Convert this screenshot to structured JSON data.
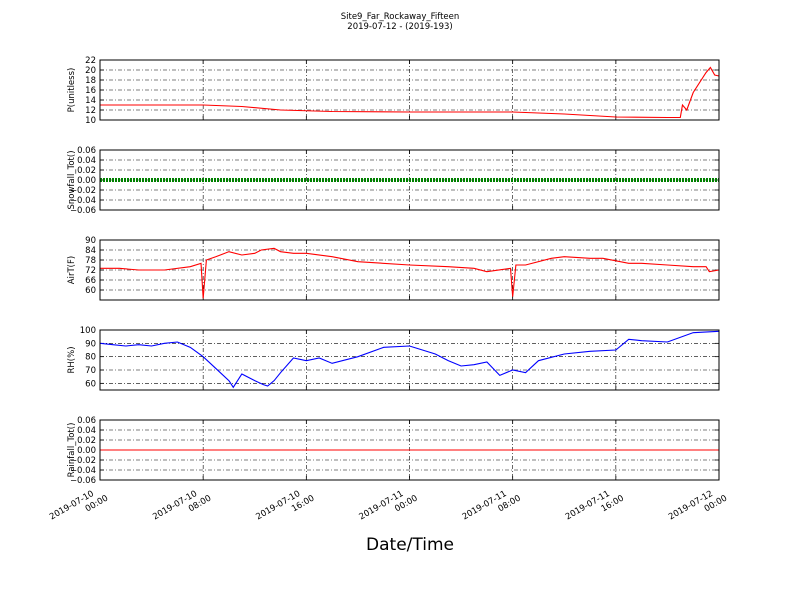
{
  "title": "Site9_Far_Rockaway_Fifteen",
  "subtitle": "2019-07-12 - (2019-193)",
  "xlabel": "Date/Time",
  "x_ticks": [
    {
      "line1": "2019-07-10",
      "line2": "00:00"
    },
    {
      "line1": "2019-07-10",
      "line2": "08:00"
    },
    {
      "line1": "2019-07-10",
      "line2": "16:00"
    },
    {
      "line1": "2019-07-11",
      "line2": "00:00"
    },
    {
      "line1": "2019-07-11",
      "line2": "08:00"
    },
    {
      "line1": "2019-07-11",
      "line2": "16:00"
    },
    {
      "line1": "2019-07-12",
      "line2": "00:00"
    }
  ],
  "chart_data": [
    {
      "type": "line",
      "ylabel": "P(unitless)",
      "ylim": [
        10,
        22
      ],
      "yticks": [
        "10",
        "12",
        "14",
        "16",
        "18",
        "20",
        "22"
      ],
      "grid": true,
      "color": "#ff0000",
      "series": [
        {
          "x": [
            "2019-07-10 00:00",
            "2019-07-10 04:00",
            "2019-07-10 08:00",
            "2019-07-10 11:00",
            "2019-07-10 14:00",
            "2019-07-10 18:00",
            "2019-07-11 00:00",
            "2019-07-11 08:00",
            "2019-07-11 12:00",
            "2019-07-11 16:00",
            "2019-07-11 20:00",
            "2019-07-11 21:00",
            "2019-07-11 21:10",
            "2019-07-11 21:30",
            "2019-07-11 22:00",
            "2019-07-11 23:00",
            "2019-07-11 23:20",
            "2019-07-11 23:40",
            "2019-07-12 00:00"
          ],
          "values": [
            13.0,
            13.0,
            13.0,
            12.7,
            12.0,
            11.7,
            11.6,
            11.6,
            11.2,
            10.6,
            10.5,
            10.5,
            13.0,
            12.0,
            15.5,
            19.5,
            20.5,
            19.0,
            18.8
          ]
        }
      ]
    },
    {
      "type": "line",
      "ylabel": "Snowfall_Tot()",
      "ylim": [
        -0.06,
        0.06
      ],
      "yticks": [
        "−0.06",
        "−0.04",
        "−0.02",
        "0.00",
        "0.02",
        "0.04",
        "0.06"
      ],
      "grid": true,
      "color": "#008000",
      "markers": true,
      "series": [
        {
          "x": [
            "2019-07-10 00:00",
            "2019-07-12 00:00"
          ],
          "values": [
            0.0,
            0.0
          ]
        }
      ]
    },
    {
      "type": "line",
      "ylabel": "AirT(F)",
      "ylim": [
        54,
        90
      ],
      "yticks": [
        "60",
        "66",
        "72",
        "78",
        "84",
        "90"
      ],
      "grid": true,
      "color": "#ff0000",
      "series": [
        {
          "x": [
            "2019-07-10 00:00",
            "2019-07-10 01:30",
            "2019-07-10 03:00",
            "2019-07-10 05:00",
            "2019-07-10 07:00",
            "2019-07-10 07:50",
            "2019-07-10 08:00",
            "2019-07-10 08:15",
            "2019-07-10 09:00",
            "2019-07-10 10:00",
            "2019-07-10 11:00",
            "2019-07-10 12:00",
            "2019-07-10 12:30",
            "2019-07-10 13:30",
            "2019-07-10 14:00",
            "2019-07-10 15:00",
            "2019-07-10 16:00",
            "2019-07-10 18:00",
            "2019-07-10 20:00",
            "2019-07-11 00:00",
            "2019-07-11 03:00",
            "2019-07-11 05:00",
            "2019-07-11 06:00",
            "2019-07-11 07:50",
            "2019-07-11 08:00",
            "2019-07-11 08:15",
            "2019-07-11 09:00",
            "2019-07-11 11:00",
            "2019-07-11 12:00",
            "2019-07-11 14:00",
            "2019-07-11 15:00",
            "2019-07-11 17:00",
            "2019-07-11 18:00",
            "2019-07-11 20:00",
            "2019-07-11 22:00",
            "2019-07-11 23:00",
            "2019-07-11 23:15",
            "2019-07-12 00:00"
          ],
          "values": [
            73,
            73,
            72,
            72,
            74,
            76,
            55,
            78,
            80,
            83,
            81,
            82,
            84,
            85,
            83,
            82,
            82,
            80,
            77,
            75,
            74,
            73,
            71,
            73,
            56,
            75,
            75,
            79,
            80,
            79,
            79,
            76,
            76,
            75,
            74,
            74,
            71,
            72
          ]
        }
      ]
    },
    {
      "type": "line",
      "ylabel": "RH(%)",
      "ylim": [
        55,
        100
      ],
      "yticks": [
        "60",
        "70",
        "80",
        "90",
        "100"
      ],
      "grid": true,
      "color": "#0000ff",
      "series": [
        {
          "x": [
            "2019-07-10 00:00",
            "2019-07-10 01:00",
            "2019-07-10 02:00",
            "2019-07-10 03:00",
            "2019-07-10 04:00",
            "2019-07-10 05:00",
            "2019-07-10 06:00",
            "2019-07-10 07:00",
            "2019-07-10 08:00",
            "2019-07-10 09:00",
            "2019-07-10 10:00",
            "2019-07-10 10:20",
            "2019-07-10 11:00",
            "2019-07-10 12:00",
            "2019-07-10 12:40",
            "2019-07-10 13:00",
            "2019-07-10 13:30",
            "2019-07-10 14:00",
            "2019-07-10 15:00",
            "2019-07-10 16:00",
            "2019-07-10 17:00",
            "2019-07-10 18:00",
            "2019-07-10 20:00",
            "2019-07-10 22:00",
            "2019-07-11 00:00",
            "2019-07-11 01:00",
            "2019-07-11 02:00",
            "2019-07-11 03:00",
            "2019-07-11 04:00",
            "2019-07-11 05:00",
            "2019-07-11 06:00",
            "2019-07-11 07:00",
            "2019-07-11 08:00",
            "2019-07-11 09:00",
            "2019-07-11 10:00",
            "2019-07-11 12:00",
            "2019-07-11 14:00",
            "2019-07-11 16:00",
            "2019-07-11 17:00",
            "2019-07-11 18:00",
            "2019-07-11 20:00",
            "2019-07-11 22:00",
            "2019-07-12 00:00"
          ],
          "values": [
            90,
            89,
            88,
            89,
            88,
            90,
            91,
            87,
            80,
            71,
            62,
            57,
            67,
            62,
            59,
            58,
            62,
            68,
            79,
            77,
            79,
            75,
            80,
            87,
            88,
            85,
            82,
            77,
            73,
            74,
            76,
            66,
            70,
            68,
            77,
            82,
            84,
            85,
            93,
            92,
            91,
            98,
            99
          ]
        }
      ]
    },
    {
      "type": "line",
      "ylabel": "Rainfall_Tot()",
      "ylim": [
        -0.06,
        0.06
      ],
      "yticks": [
        "−0.06",
        "−0.04",
        "−0.02",
        "0.00",
        "0.02",
        "0.04",
        "0.06"
      ],
      "grid": true,
      "color": "#ff0000",
      "series": [
        {
          "x": [
            "2019-07-10 00:00",
            "2019-07-12 00:00"
          ],
          "values": [
            0.0,
            0.0
          ]
        }
      ]
    }
  ]
}
